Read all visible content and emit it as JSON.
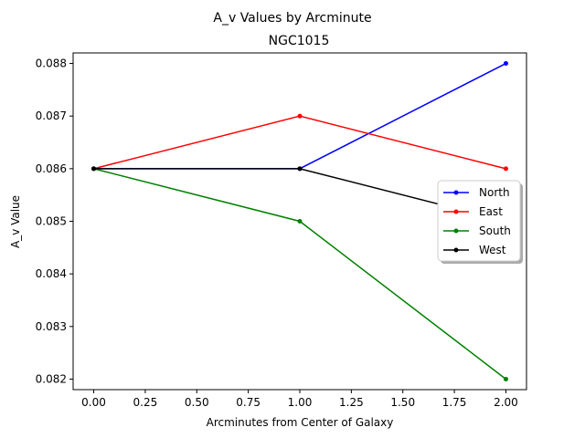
{
  "chart_data": {
    "type": "line",
    "suptitle": "A_v Values by Arcminute",
    "title": "NGC1015",
    "xlabel": "Arcminutes from Center of Galaxy",
    "ylabel": "A_v Value",
    "x": [
      0,
      1,
      2
    ],
    "xlim": [
      -0.1,
      2.1
    ],
    "ylim": [
      0.0818,
      0.0882
    ],
    "xticks": [
      0.0,
      0.25,
      0.5,
      0.75,
      1.0,
      1.25,
      1.5,
      1.75,
      2.0
    ],
    "xtick_labels": [
      "0.00",
      "0.25",
      "0.50",
      "0.75",
      "1.00",
      "1.25",
      "1.50",
      "1.75",
      "2.00"
    ],
    "yticks": [
      0.082,
      0.083,
      0.084,
      0.085,
      0.086,
      0.087,
      0.088
    ],
    "ytick_labels": [
      "0.082",
      "0.083",
      "0.084",
      "0.085",
      "0.086",
      "0.087",
      "0.088"
    ],
    "grid": false,
    "legend_position": "center-right",
    "series": [
      {
        "name": "North",
        "color": "#0000ff",
        "values": [
          0.086,
          0.086,
          0.088
        ]
      },
      {
        "name": "East",
        "color": "#ff0000",
        "values": [
          0.086,
          0.087,
          0.086
        ]
      },
      {
        "name": "South",
        "color": "#008000",
        "values": [
          0.086,
          0.085,
          0.082
        ]
      },
      {
        "name": "West",
        "color": "#000000",
        "values": [
          0.086,
          0.086,
          0.085
        ]
      }
    ]
  }
}
